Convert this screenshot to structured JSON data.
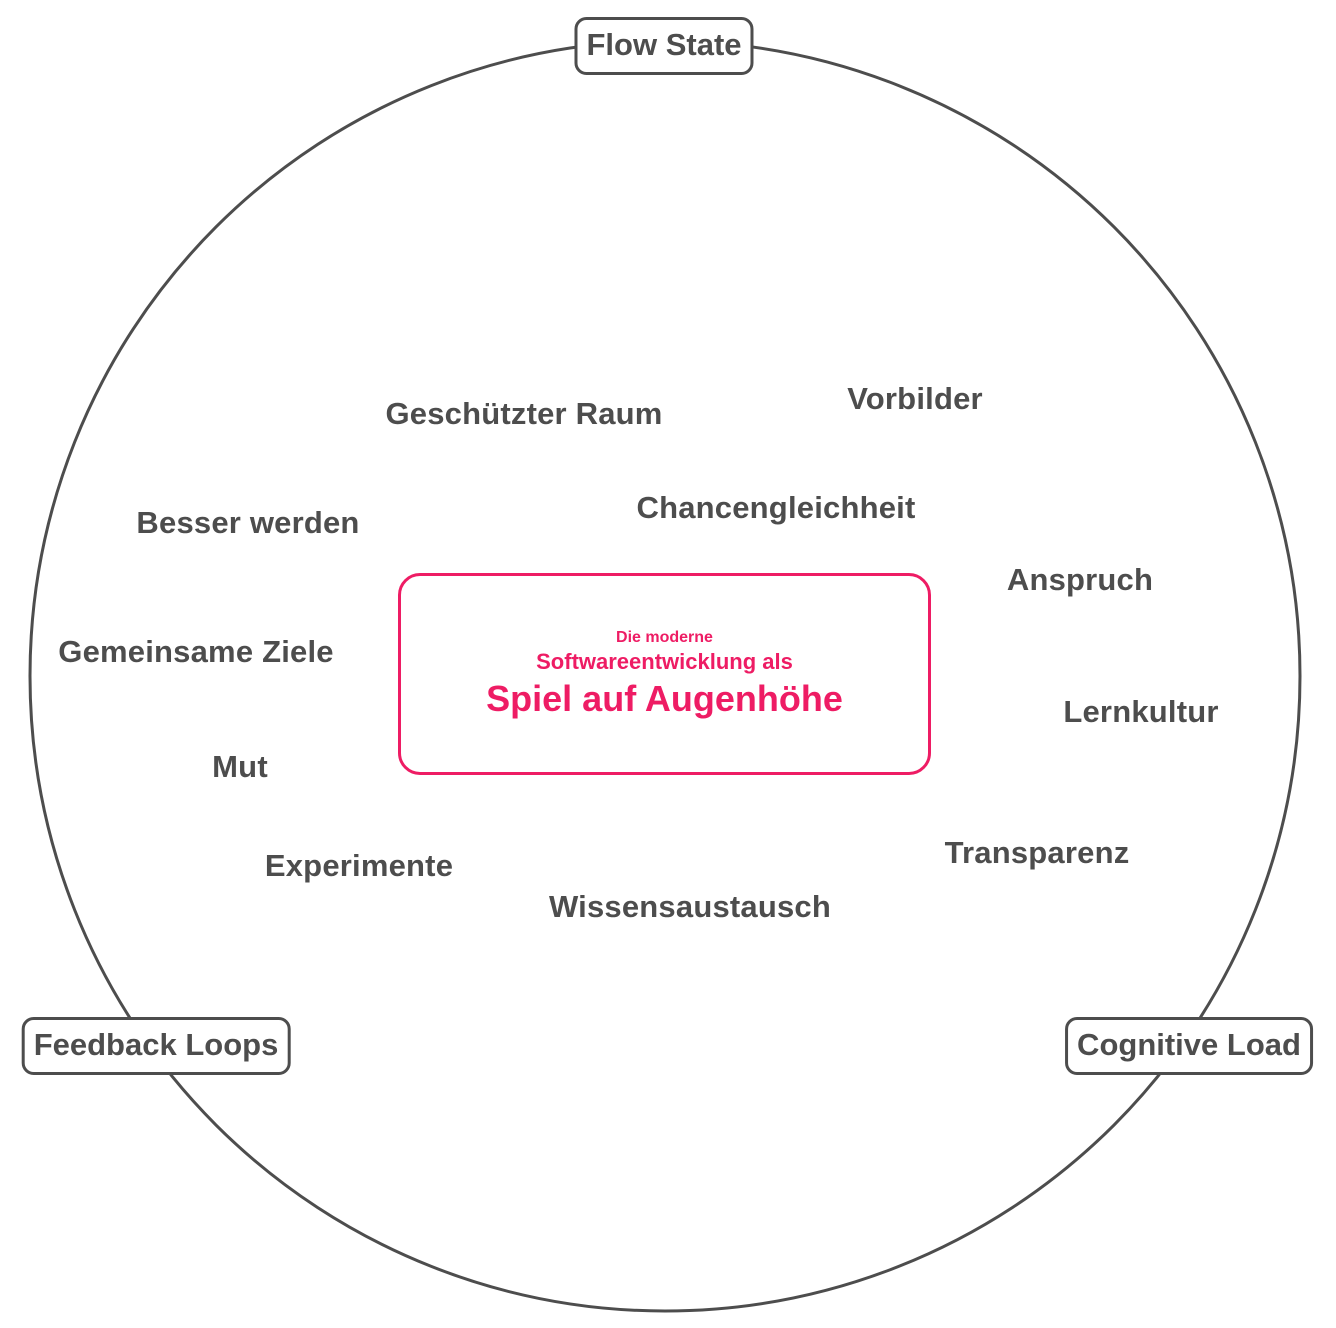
{
  "colors": {
    "outline": "#4d4d4d",
    "text": "#4d4d4d",
    "accent": "#ee1c64",
    "background": "#ffffff"
  },
  "center": {
    "line1": "Die moderne",
    "line2": "Softwareentwicklung als",
    "line3": "Spiel auf Augenhöhe"
  },
  "pillars": {
    "top": "Flow State",
    "left": "Feedback Loops",
    "right": "Cognitive Load"
  },
  "keywords": {
    "geschuetzter_raum": "Geschützter Raum",
    "vorbilder": "Vorbilder",
    "besser_werden": "Besser werden",
    "chancengleichheit": "Chancengleichheit",
    "anspruch": "Anspruch",
    "gemeinsame_ziele": "Gemeinsame Ziele",
    "lernkultur": "Lernkultur",
    "mut": "Mut",
    "transparenz": "Transparenz",
    "experimente": "Experimente",
    "wissensaustausch": "Wissensaustausch"
  }
}
